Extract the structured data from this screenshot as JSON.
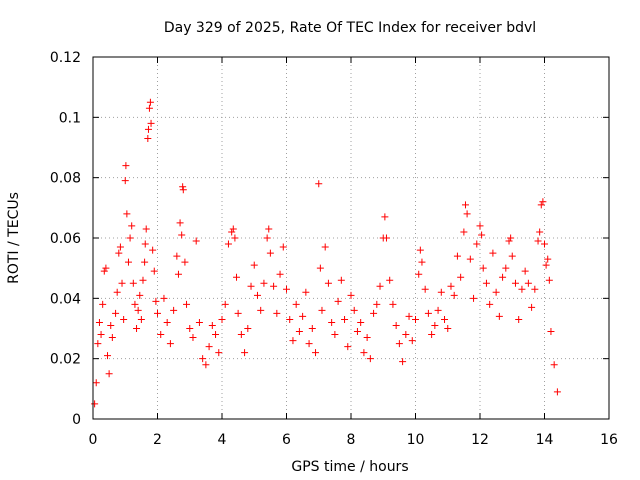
{
  "chart_data": {
    "type": "scatter",
    "title": "Day 329 of 2025, Rate Of TEC Index for receiver bdvl",
    "xlabel": "GPS time / hours",
    "ylabel": "ROTI / TECUs",
    "xlim": [
      0,
      16
    ],
    "ylim": [
      0,
      0.12
    ],
    "x_ticks": [
      0,
      2,
      4,
      6,
      8,
      10,
      12,
      14,
      16
    ],
    "x_tick_labels": [
      "0",
      "2",
      "4",
      "6",
      "8",
      "10",
      "12",
      "14",
      "16"
    ],
    "y_ticks": [
      0,
      0.02,
      0.04,
      0.06,
      0.08,
      0.1,
      0.12
    ],
    "y_tick_labels": [
      "0",
      "0.02",
      "0.04",
      "0.06",
      "0.08",
      "0.1",
      "0.12"
    ],
    "grid": true,
    "marker": "+",
    "marker_color": "#ff0000",
    "series": [
      {
        "name": "ROTI",
        "points": [
          [
            0.05,
            0.005
          ],
          [
            0.1,
            0.012
          ],
          [
            0.15,
            0.025
          ],
          [
            0.2,
            0.032
          ],
          [
            0.25,
            0.028
          ],
          [
            0.3,
            0.038
          ],
          [
            0.35,
            0.049
          ],
          [
            0.4,
            0.05
          ],
          [
            0.45,
            0.021
          ],
          [
            0.5,
            0.015
          ],
          [
            0.55,
            0.031
          ],
          [
            0.6,
            0.027
          ],
          [
            0.7,
            0.035
          ],
          [
            0.75,
            0.042
          ],
          [
            0.8,
            0.055
          ],
          [
            0.85,
            0.057
          ],
          [
            0.9,
            0.045
          ],
          [
            0.95,
            0.033
          ],
          [
            1.0,
            0.079
          ],
          [
            1.02,
            0.084
          ],
          [
            1.05,
            0.068
          ],
          [
            1.1,
            0.052
          ],
          [
            1.15,
            0.06
          ],
          [
            1.2,
            0.064
          ],
          [
            1.25,
            0.045
          ],
          [
            1.3,
            0.038
          ],
          [
            1.35,
            0.03
          ],
          [
            1.4,
            0.036
          ],
          [
            1.45,
            0.041
          ],
          [
            1.5,
            0.033
          ],
          [
            1.55,
            0.046
          ],
          [
            1.6,
            0.052
          ],
          [
            1.62,
            0.058
          ],
          [
            1.65,
            0.063
          ],
          [
            1.7,
            0.093
          ],
          [
            1.72,
            0.096
          ],
          [
            1.75,
            0.103
          ],
          [
            1.78,
            0.105
          ],
          [
            1.8,
            0.098
          ],
          [
            1.85,
            0.056
          ],
          [
            1.9,
            0.049
          ],
          [
            1.95,
            0.039
          ],
          [
            2.0,
            0.035
          ],
          [
            2.1,
            0.028
          ],
          [
            2.2,
            0.04
          ],
          [
            2.3,
            0.032
          ],
          [
            2.4,
            0.025
          ],
          [
            2.5,
            0.036
          ],
          [
            2.6,
            0.054
          ],
          [
            2.65,
            0.048
          ],
          [
            2.7,
            0.065
          ],
          [
            2.75,
            0.061
          ],
          [
            2.78,
            0.077
          ],
          [
            2.8,
            0.076
          ],
          [
            2.85,
            0.052
          ],
          [
            2.9,
            0.038
          ],
          [
            3.0,
            0.03
          ],
          [
            3.1,
            0.027
          ],
          [
            3.2,
            0.059
          ],
          [
            3.3,
            0.032
          ],
          [
            3.4,
            0.02
          ],
          [
            3.5,
            0.018
          ],
          [
            3.6,
            0.024
          ],
          [
            3.7,
            0.031
          ],
          [
            3.8,
            0.028
          ],
          [
            3.9,
            0.022
          ],
          [
            4.0,
            0.033
          ],
          [
            4.1,
            0.038
          ],
          [
            4.2,
            0.058
          ],
          [
            4.3,
            0.062
          ],
          [
            4.35,
            0.063
          ],
          [
            4.4,
            0.06
          ],
          [
            4.45,
            0.047
          ],
          [
            4.5,
            0.035
          ],
          [
            4.6,
            0.028
          ],
          [
            4.7,
            0.022
          ],
          [
            4.8,
            0.03
          ],
          [
            4.9,
            0.044
          ],
          [
            5.0,
            0.051
          ],
          [
            5.1,
            0.041
          ],
          [
            5.2,
            0.036
          ],
          [
            5.3,
            0.045
          ],
          [
            5.4,
            0.06
          ],
          [
            5.45,
            0.063
          ],
          [
            5.5,
            0.055
          ],
          [
            5.6,
            0.044
          ],
          [
            5.7,
            0.035
          ],
          [
            5.8,
            0.048
          ],
          [
            5.9,
            0.057
          ],
          [
            6.0,
            0.043
          ],
          [
            6.1,
            0.033
          ],
          [
            6.2,
            0.026
          ],
          [
            6.3,
            0.038
          ],
          [
            6.4,
            0.029
          ],
          [
            6.5,
            0.034
          ],
          [
            6.6,
            0.042
          ],
          [
            6.7,
            0.025
          ],
          [
            6.8,
            0.03
          ],
          [
            6.9,
            0.022
          ],
          [
            7.0,
            0.078
          ],
          [
            7.05,
            0.05
          ],
          [
            7.1,
            0.036
          ],
          [
            7.2,
            0.057
          ],
          [
            7.3,
            0.045
          ],
          [
            7.4,
            0.032
          ],
          [
            7.5,
            0.028
          ],
          [
            7.6,
            0.039
          ],
          [
            7.7,
            0.046
          ],
          [
            7.8,
            0.033
          ],
          [
            7.9,
            0.024
          ],
          [
            8.0,
            0.041
          ],
          [
            8.1,
            0.036
          ],
          [
            8.2,
            0.029
          ],
          [
            8.3,
            0.032
          ],
          [
            8.4,
            0.022
          ],
          [
            8.5,
            0.027
          ],
          [
            8.6,
            0.02
          ],
          [
            8.7,
            0.035
          ],
          [
            8.8,
            0.038
          ],
          [
            8.9,
            0.044
          ],
          [
            9.0,
            0.06
          ],
          [
            9.05,
            0.067
          ],
          [
            9.1,
            0.06
          ],
          [
            9.2,
            0.046
          ],
          [
            9.3,
            0.038
          ],
          [
            9.4,
            0.031
          ],
          [
            9.5,
            0.025
          ],
          [
            9.6,
            0.019
          ],
          [
            9.7,
            0.028
          ],
          [
            9.8,
            0.034
          ],
          [
            9.9,
            0.026
          ],
          [
            10.0,
            0.033
          ],
          [
            10.1,
            0.048
          ],
          [
            10.15,
            0.056
          ],
          [
            10.2,
            0.052
          ],
          [
            10.3,
            0.043
          ],
          [
            10.4,
            0.035
          ],
          [
            10.5,
            0.028
          ],
          [
            10.6,
            0.031
          ],
          [
            10.7,
            0.036
          ],
          [
            10.8,
            0.042
          ],
          [
            10.9,
            0.033
          ],
          [
            11.0,
            0.03
          ],
          [
            11.1,
            0.044
          ],
          [
            11.2,
            0.041
          ],
          [
            11.3,
            0.054
          ],
          [
            11.4,
            0.047
          ],
          [
            11.5,
            0.062
          ],
          [
            11.55,
            0.071
          ],
          [
            11.6,
            0.068
          ],
          [
            11.7,
            0.053
          ],
          [
            11.8,
            0.04
          ],
          [
            11.9,
            0.058
          ],
          [
            12.0,
            0.064
          ],
          [
            12.05,
            0.061
          ],
          [
            12.1,
            0.05
          ],
          [
            12.2,
            0.045
          ],
          [
            12.3,
            0.038
          ],
          [
            12.4,
            0.055
          ],
          [
            12.5,
            0.042
          ],
          [
            12.6,
            0.034
          ],
          [
            12.7,
            0.047
          ],
          [
            12.8,
            0.05
          ],
          [
            12.9,
            0.059
          ],
          [
            12.95,
            0.06
          ],
          [
            13.0,
            0.054
          ],
          [
            13.1,
            0.045
          ],
          [
            13.2,
            0.033
          ],
          [
            13.3,
            0.043
          ],
          [
            13.4,
            0.049
          ],
          [
            13.5,
            0.045
          ],
          [
            13.6,
            0.037
          ],
          [
            13.7,
            0.043
          ],
          [
            13.8,
            0.059
          ],
          [
            13.85,
            0.062
          ],
          [
            13.9,
            0.071
          ],
          [
            13.95,
            0.072
          ],
          [
            14.0,
            0.058
          ],
          [
            14.05,
            0.051
          ],
          [
            14.1,
            0.053
          ],
          [
            14.15,
            0.046
          ],
          [
            14.2,
            0.029
          ],
          [
            14.3,
            0.018
          ],
          [
            14.4,
            0.009
          ]
        ]
      }
    ]
  }
}
